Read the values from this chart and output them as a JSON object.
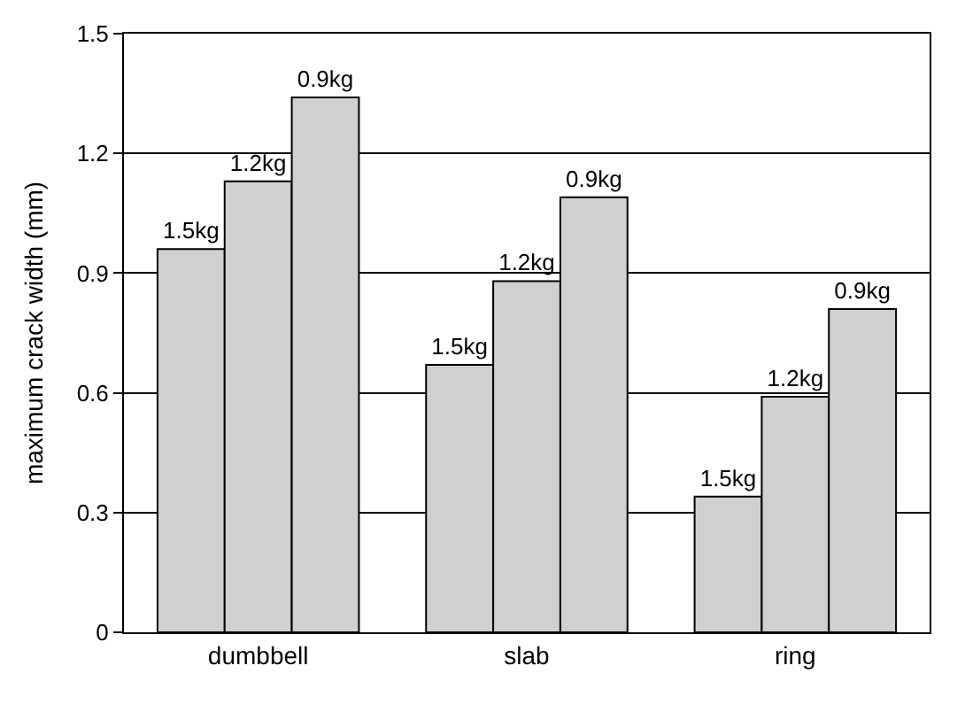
{
  "chart_data": {
    "type": "bar",
    "ylabel": "maximum crack width (mm)",
    "categories": [
      "dumbbell",
      "slab",
      "ring"
    ],
    "series": [
      {
        "name": "1.5kg",
        "color": "#d0d0d0",
        "values": [
          0.96,
          0.67,
          0.34
        ]
      },
      {
        "name": "1.2kg",
        "color": "#d0d0d0",
        "values": [
          1.13,
          0.88,
          0.59
        ]
      },
      {
        "name": "0.9kg",
        "color": "#d0d0d0",
        "values": [
          1.34,
          1.09,
          0.81
        ]
      }
    ],
    "ylim": [
      0,
      1.5
    ],
    "yticks": [
      0,
      0.3,
      0.6,
      0.9,
      1.2,
      1.5
    ],
    "grid": "y",
    "legend": false
  }
}
